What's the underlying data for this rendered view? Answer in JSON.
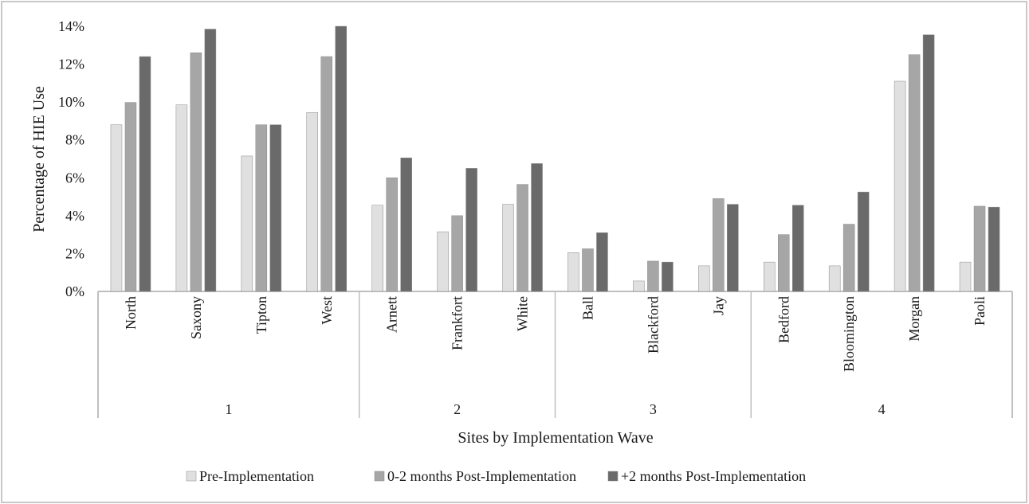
{
  "chart_data": {
    "type": "bar",
    "title": "",
    "xlabel": "Sites by Implementation  Wave",
    "ylabel": "Percentage of HIE Use",
    "ylim": [
      0,
      0.14
    ],
    "yticks": [
      "0%",
      "2%",
      "4%",
      "6%",
      "8%",
      "10%",
      "12%",
      "14%"
    ],
    "grid": false,
    "legend_position": "bottom",
    "groups": [
      {
        "label": "1",
        "categories": [
          "North",
          "Saxony",
          "Tipton",
          "West"
        ]
      },
      {
        "label": "2",
        "categories": [
          "Arnett",
          "Frankfort",
          "White"
        ]
      },
      {
        "label": "3",
        "categories": [
          "Ball",
          "Blackford",
          "Jay"
        ]
      },
      {
        "label": "4",
        "categories": [
          "Bedford",
          "Bloomington",
          "Morgan",
          "Paoli"
        ]
      }
    ],
    "categories": [
      "North",
      "Saxony",
      "Tipton",
      "West",
      "Arnett",
      "Frankfort",
      "White",
      "Ball",
      "Blackford",
      "Jay",
      "Bedford",
      "Bloomington",
      "Morgan",
      "Paoli"
    ],
    "series": [
      {
        "name": "Pre-Implementation",
        "color": "#e0e0e0",
        "values": [
          0.088,
          0.0985,
          0.0715,
          0.0945,
          0.0455,
          0.0315,
          0.046,
          0.0205,
          0.0055,
          0.0135,
          0.0155,
          0.0135,
          0.111,
          0.0155
        ]
      },
      {
        "name": "0-2 months Post-Implementation",
        "color": "#a6a6a6",
        "values": [
          0.0998,
          0.126,
          0.088,
          0.124,
          0.06,
          0.04,
          0.0565,
          0.0225,
          0.016,
          0.049,
          0.03,
          0.0355,
          0.125,
          0.045
        ]
      },
      {
        "name": "+2 months Post-Implementation",
        "color": "#6a6a6a",
        "values": [
          0.124,
          0.1385,
          0.088,
          0.14,
          0.0705,
          0.065,
          0.0675,
          0.031,
          0.0155,
          0.046,
          0.0455,
          0.0525,
          0.1355,
          0.0445
        ]
      }
    ]
  }
}
